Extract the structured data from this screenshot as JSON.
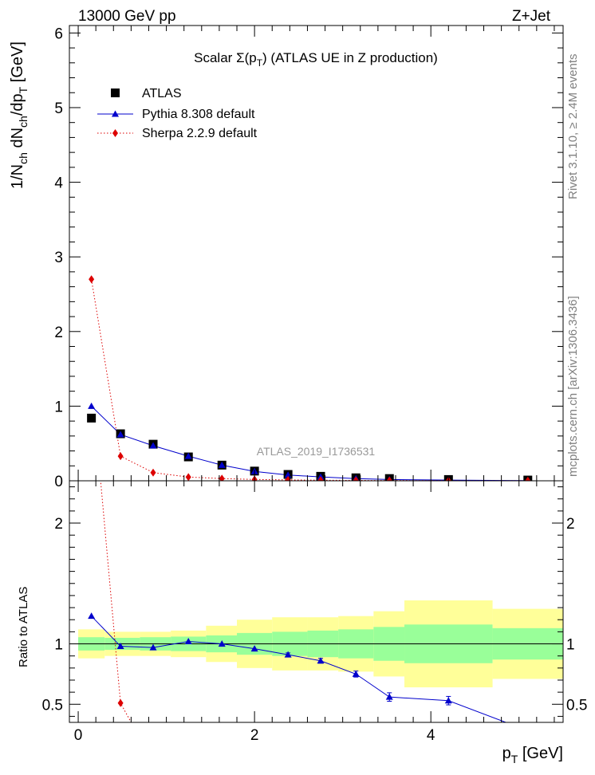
{
  "header": {
    "left": "13000 GeV pp",
    "right": "Z+Jet"
  },
  "side_labels": {
    "top": "Rivet 3.1.10, ≥ 2.4M events",
    "bottom": "mcplots.cern.ch [arXiv:1306.3436]"
  },
  "chart_data": [
    {
      "type": "scatter",
      "title": "Scalar Σ(p_T) (ATLAS UE in Z production)",
      "title_parts": [
        "Scalar ",
        "Σ(p",
        "T",
        ") (ATLAS UE in Z production)"
      ],
      "watermark": "ATLAS_2019_I1736531",
      "ylabel": "1/N_ch dN_ch/dp_T [GeV]",
      "ylabel_parts": [
        "1/N",
        "ch",
        " dN",
        "ch",
        "/dp",
        "T",
        " [GeV]"
      ],
      "xlim": [
        -0.1,
        5.5
      ],
      "ylim": [
        0,
        6.1
      ],
      "yticks": [
        0,
        1,
        2,
        3,
        4,
        5,
        6
      ],
      "legend_position": "top-left",
      "x": [
        0.15,
        0.48,
        0.85,
        1.25,
        1.63,
        2.0,
        2.38,
        2.75,
        3.15,
        3.53,
        4.2,
        5.1
      ],
      "series": [
        {
          "name": "ATLAS",
          "marker": "square",
          "color": "#000000",
          "values": [
            0.84,
            0.63,
            0.49,
            0.32,
            0.21,
            0.13,
            0.085,
            0.06,
            0.04,
            0.03,
            0.017,
            0.01
          ]
        },
        {
          "name": "Pythia 8.308 default",
          "marker": "triangle",
          "line": "solid",
          "color": "#0000cc",
          "values": [
            1.0,
            0.62,
            0.47,
            0.33,
            0.21,
            0.125,
            0.077,
            0.052,
            0.03,
            0.017,
            0.009,
            0.003
          ]
        },
        {
          "name": "Sherpa 2.2.9 default",
          "marker": "diamond",
          "line": "dotted",
          "color": "#dd0000",
          "values": [
            2.7,
            0.33,
            0.11,
            0.05,
            0.03,
            0.018,
            0.012,
            0.008,
            0.005,
            0.004,
            0.002,
            0.001
          ]
        }
      ]
    },
    {
      "type": "line",
      "ylabel": "Ratio to ATLAS",
      "xlabel": "p_T [GeV]",
      "xlabel_parts": [
        "p",
        "T",
        " [GeV]"
      ],
      "xlim": [
        -0.1,
        5.5
      ],
      "ylim": [
        0.35,
        2.35
      ],
      "xticks": [
        0,
        2,
        4
      ],
      "yticks": [
        0.5,
        1,
        2
      ],
      "reference_line": 1,
      "bins": [
        {
          "lo": 0.0,
          "hi": 0.3,
          "stat": 0.055,
          "total": 0.12
        },
        {
          "lo": 0.3,
          "hi": 0.7,
          "stat": 0.05,
          "total": 0.1
        },
        {
          "lo": 0.7,
          "hi": 1.05,
          "stat": 0.055,
          "total": 0.1
        },
        {
          "lo": 1.05,
          "hi": 1.45,
          "stat": 0.06,
          "total": 0.11
        },
        {
          "lo": 1.45,
          "hi": 1.8,
          "stat": 0.07,
          "total": 0.15
        },
        {
          "lo": 1.8,
          "hi": 2.2,
          "stat": 0.09,
          "total": 0.2
        },
        {
          "lo": 2.2,
          "hi": 2.6,
          "stat": 0.1,
          "total": 0.22
        },
        {
          "lo": 2.6,
          "hi": 2.95,
          "stat": 0.11,
          "total": 0.22
        },
        {
          "lo": 2.95,
          "hi": 3.35,
          "stat": 0.12,
          "total": 0.23
        },
        {
          "lo": 3.35,
          "hi": 3.7,
          "stat": 0.14,
          "total": 0.27
        },
        {
          "lo": 3.7,
          "hi": 4.7,
          "stat": 0.16,
          "total": 0.36
        },
        {
          "lo": 4.7,
          "hi": 5.5,
          "stat": 0.13,
          "total": 0.29
        }
      ],
      "series": [
        {
          "name": "Pythia 8.308 default",
          "color": "#0000cc",
          "x": [
            0.15,
            0.48,
            0.85,
            1.25,
            1.63,
            2.0,
            2.38,
            2.75,
            3.15,
            3.53,
            4.2,
            4.85
          ],
          "values": [
            1.23,
            0.98,
            0.97,
            1.02,
            1.0,
            0.96,
            0.91,
            0.86,
            0.75,
            0.56,
            0.53,
            0.35
          ],
          "errors": [
            0,
            0,
            0,
            0,
            0,
            0,
            0.015,
            0.02,
            0.025,
            0.035,
            0.035,
            0
          ]
        },
        {
          "name": "Sherpa 2.2.9 default",
          "color": "#dd0000",
          "x": [
            0.15,
            0.48,
            0.6
          ],
          "values": [
            3.2,
            0.51,
            0.35
          ],
          "errors": [
            0,
            0,
            0
          ]
        }
      ]
    }
  ]
}
